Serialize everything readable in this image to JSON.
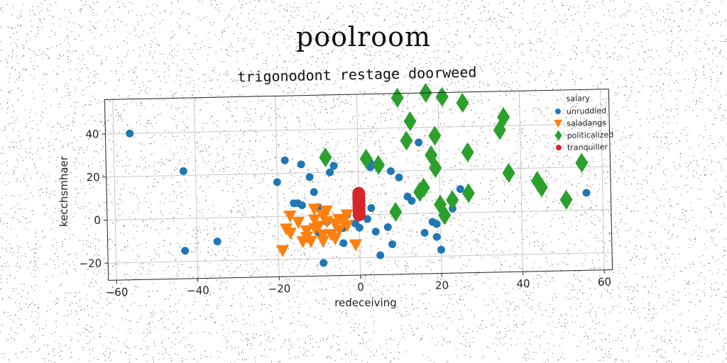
{
  "page": {
    "heading": "poolroom"
  },
  "chart_data": {
    "type": "scatter",
    "title": "trigonodont restage doorweed",
    "xlabel": "redeceiving",
    "ylabel": "kecchsmhaer",
    "xlim": [
      -62,
      62
    ],
    "ylim": [
      -28,
      56
    ],
    "xticks": [
      -60,
      -40,
      -20,
      0,
      20,
      40,
      60
    ],
    "yticks": [
      -20,
      0,
      20,
      40
    ],
    "grid": true,
    "legend": {
      "title": "salary",
      "position": "top-right"
    },
    "series": [
      {
        "name": "unruddled",
        "marker": "circle",
        "color": "#1f77b4",
        "points": [
          [
            -56,
            40
          ],
          [
            -43,
            22
          ],
          [
            -43,
            -15
          ],
          [
            -35,
            -11
          ],
          [
            -20,
            16
          ],
          [
            -18,
            26
          ],
          [
            -14,
            24
          ],
          [
            -12,
            18
          ],
          [
            -11,
            11
          ],
          [
            -15,
            6
          ],
          [
            -16,
            6
          ],
          [
            -14,
            5
          ],
          [
            -10,
            4
          ],
          [
            -6,
            23
          ],
          [
            -7,
            20
          ],
          [
            -8,
            -3
          ],
          [
            -10,
            -8
          ],
          [
            -9,
            -22
          ],
          [
            -3,
            0
          ],
          [
            -4,
            -6
          ],
          [
            -4,
            -13
          ],
          [
            -1,
            -4
          ],
          [
            0,
            -6
          ],
          [
            2,
            -2
          ],
          [
            3,
            3
          ],
          [
            4,
            -8
          ],
          [
            5,
            -19
          ],
          [
            7,
            -6
          ],
          [
            8,
            -14
          ],
          [
            3,
            22
          ],
          [
            3,
            24
          ],
          [
            8,
            20
          ],
          [
            10,
            17
          ],
          [
            12,
            8
          ],
          [
            13,
            6
          ],
          [
            15,
            33
          ],
          [
            16,
            -9
          ],
          [
            18,
            -4
          ],
          [
            19,
            -5
          ],
          [
            19,
            -11
          ],
          [
            20,
            -17
          ],
          [
            25,
            11
          ],
          [
            23,
            2
          ],
          [
            56,
            8
          ]
        ]
      },
      {
        "name": "saladangs",
        "marker": "triangle-down",
        "color": "#ff7f0e",
        "points": [
          [
            -18,
            -6
          ],
          [
            -19,
            -16
          ],
          [
            -17,
            -8
          ],
          [
            -17,
            0
          ],
          [
            -15,
            -3
          ],
          [
            -14,
            -12
          ],
          [
            -13,
            -7
          ],
          [
            -13,
            -10
          ],
          [
            -12,
            -12
          ],
          [
            -11,
            -6
          ],
          [
            -11,
            -2
          ],
          [
            -10,
            -5
          ],
          [
            -9,
            -12
          ],
          [
            -9,
            -9
          ],
          [
            -9,
            0
          ],
          [
            -8,
            -3
          ],
          [
            -7,
            -9
          ],
          [
            -6,
            -11
          ],
          [
            -6,
            -4
          ],
          [
            -5,
            -7
          ],
          [
            -5,
            -2
          ],
          [
            -4,
            -3
          ],
          [
            -3,
            -5
          ],
          [
            -3,
            0
          ],
          [
            -11,
            3
          ],
          [
            -8,
            2
          ],
          [
            -1,
            -14
          ]
        ]
      },
      {
        "name": "politicalized",
        "marker": "diamond",
        "color": "#2ca02c",
        "points": [
          [
            -8,
            27
          ],
          [
            2,
            26
          ],
          [
            5,
            23
          ],
          [
            9,
            1
          ],
          [
            10,
            54
          ],
          [
            12,
            34
          ],
          [
            13,
            43
          ],
          [
            15,
            10
          ],
          [
            16,
            12
          ],
          [
            17,
            56
          ],
          [
            18,
            27
          ],
          [
            19,
            36
          ],
          [
            19,
            21
          ],
          [
            20,
            4
          ],
          [
            21,
            -1
          ],
          [
            21,
            54
          ],
          [
            23,
            6
          ],
          [
            26,
            51
          ],
          [
            27,
            28
          ],
          [
            27,
            9
          ],
          [
            35,
            38
          ],
          [
            36,
            44
          ],
          [
            37,
            18
          ],
          [
            44,
            14
          ],
          [
            45,
            11
          ],
          [
            51,
            5
          ],
          [
            55,
            22
          ]
        ]
      },
      {
        "name": "tranquiller",
        "marker": "circle",
        "color": "#d62728",
        "points": [
          [
            0,
            0
          ],
          [
            0,
            1
          ],
          [
            0,
            2
          ],
          [
            0,
            3
          ],
          [
            0,
            4
          ],
          [
            0,
            5
          ],
          [
            0,
            6
          ],
          [
            0,
            7
          ],
          [
            0,
            8
          ],
          [
            0,
            9
          ],
          [
            0,
            10
          ]
        ]
      }
    ]
  }
}
